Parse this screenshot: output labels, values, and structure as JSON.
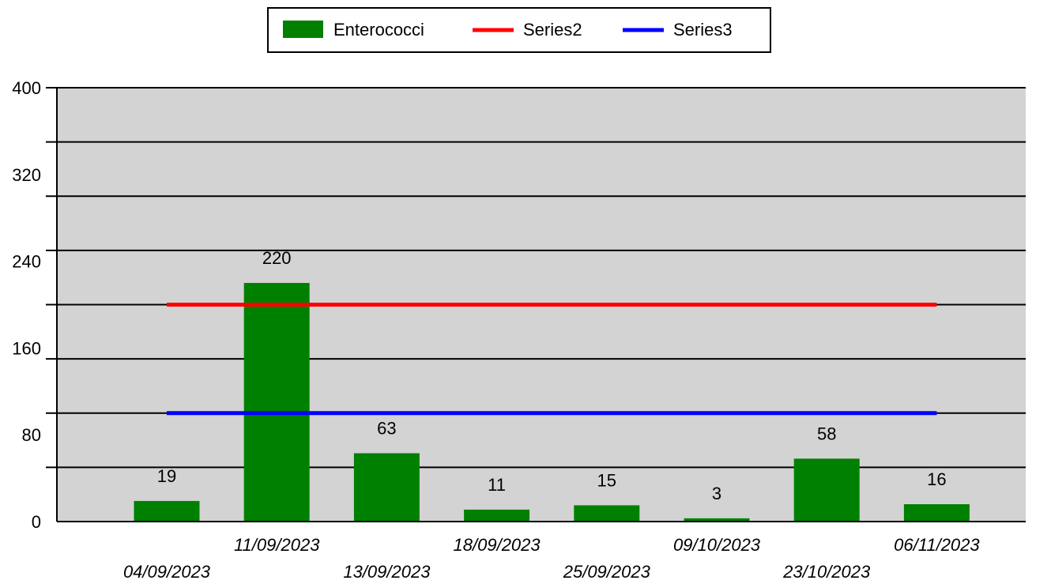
{
  "chart_data": {
    "type": "bar",
    "categories": [
      "04/09/2023",
      "11/09/2023",
      "13/09/2023",
      "18/09/2023",
      "25/09/2023",
      "09/10/2023",
      "23/10/2023",
      "06/11/2023"
    ],
    "series": [
      {
        "name": "Enterococci",
        "kind": "bar",
        "color": "#008000",
        "values": [
          19,
          220,
          63,
          11,
          15,
          3,
          58,
          16
        ]
      },
      {
        "name": "Series2",
        "kind": "line",
        "color": "#ff0000",
        "values": [
          200,
          200,
          200,
          200,
          200,
          200,
          200,
          200
        ]
      },
      {
        "name": "Series3",
        "kind": "line",
        "color": "#0000ff",
        "values": [
          100,
          100,
          100,
          100,
          100,
          100,
          100,
          100
        ]
      }
    ],
    "data_labels": [
      "19",
      "220",
      "63",
      "11",
      "15",
      "3",
      "58",
      "16"
    ],
    "y_tick_labels": [
      "0",
      "80",
      "160",
      "240",
      "320",
      "400"
    ],
    "ylim": [
      0,
      400
    ],
    "gridline_step": 50,
    "grid": true,
    "legend": "top-center",
    "plot_background": "#d3d3d3"
  }
}
